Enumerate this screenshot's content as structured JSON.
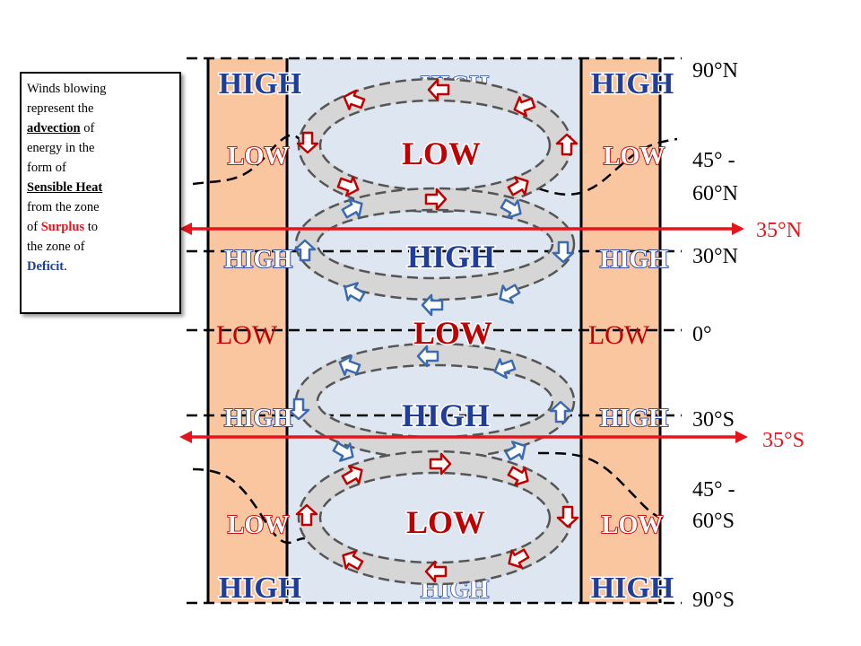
{
  "note": {
    "lines": [
      [
        "Winds blowing"
      ],
      [
        "represent the"
      ],
      [
        "advection",
        " of"
      ],
      [
        "energy in the"
      ],
      [
        "form of"
      ],
      [
        "Sensible Heat"
      ],
      [
        "from the zone"
      ],
      [
        "of ",
        "Surplus",
        " to"
      ],
      [
        "the zone of"
      ],
      [
        "Deficit",
        "."
      ]
    ]
  },
  "latitudes": [
    {
      "lines": [
        "90°N"
      ]
    },
    {
      "lines": [
        "45° -",
        "60°N"
      ]
    },
    {
      "lines": [
        "30°N"
      ]
    },
    {
      "lines": [
        "0°"
      ]
    },
    {
      "lines": [
        "30°S"
      ]
    },
    {
      "lines": [
        "45° -",
        "60°S"
      ]
    },
    {
      "lines": [
        "90°S"
      ]
    }
  ],
  "parallels": [
    "35°N",
    "35°S"
  ],
  "pressure_labels": [
    [
      "HIGH",
      "HIGH",
      "HIGH"
    ],
    [
      "LOW",
      "LOW",
      "LOW"
    ],
    [
      "HIGH",
      "HIGH",
      "HIGH"
    ],
    [
      "LOW",
      "LOW",
      "LOW"
    ],
    [
      "HIGH",
      "HIGH",
      "HIGH"
    ],
    [
      "LOW",
      "LOW",
      "LOW"
    ],
    [
      "HIGH",
      "HIGH",
      "HIGH"
    ]
  ]
}
